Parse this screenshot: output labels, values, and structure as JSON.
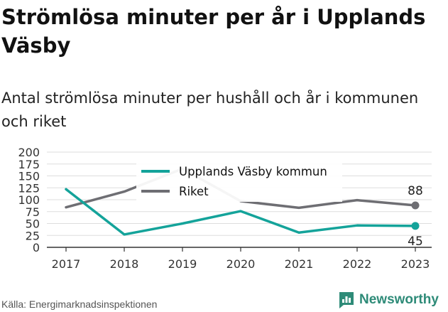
{
  "title": "Strömlösa minuter per år i Upplands Väsby",
  "subtitle": "Antal strömlösa minuter per hushåll och år i kommunen och riket",
  "source": "Källa: Energimarknadsinspektionen",
  "brand": "Newsworthy",
  "colors": {
    "kommun": "#14a39a",
    "riket": "#6e6e73",
    "grid": "#dddddd",
    "brand": "#2e8b78"
  },
  "chart_data": {
    "type": "line",
    "categories": [
      "2017",
      "2018",
      "2019",
      "2020",
      "2021",
      "2022",
      "2023"
    ],
    "ylim": [
      0,
      200
    ],
    "yticks": [
      0,
      25,
      50,
      75,
      100,
      125,
      150,
      175,
      200
    ],
    "legend_position": "top-center",
    "grid": true,
    "series": [
      {
        "name": "Upplands Väsby kommun",
        "values": [
          122,
          27,
          50,
          76,
          31,
          46,
          45
        ],
        "end_label": "45"
      },
      {
        "name": "Riket",
        "values": [
          84,
          117,
          165,
          97,
          83,
          99,
          88
        ],
        "end_label": "88"
      }
    ]
  }
}
